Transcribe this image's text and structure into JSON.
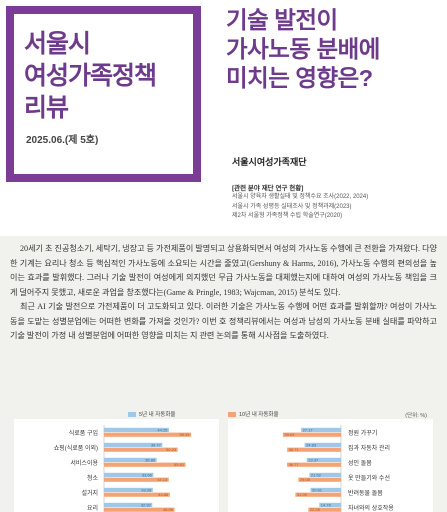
{
  "brand": {
    "title_lines": [
      "서울시",
      "여성가족정책",
      "리뷰"
    ],
    "issue": "2025.06.(제 5호)"
  },
  "headline": {
    "lines": [
      "기술 발전이",
      "가사노동 분배에",
      "미치는 영향은?"
    ]
  },
  "org": "서울시여성가족재단",
  "related": {
    "title": "[관련 분야 재단 연구 현황]",
    "items": [
      "서울시 양육자 생활실태 및 정책수요 조사(2022, 2024)",
      "서울시 가족 성평등 실태조사 및 정책과제(2023)",
      "제2차 서울형 가족정책 수립 학술연구(2020)"
    ]
  },
  "body": {
    "paragraphs": [
      "20세기 초 진공청소기, 세탁기, 냉장고 등 가전제품이 발명되고 상용화되면서 여성의 가사노동 수행에 큰 전환을 가져왔다. 다양한 기계는 요리나 청소 등 핵심적인 가사노동에 소요되는 시간을 줄였고(Gershuny & Harms, 2016), 가사노동 수행의 편의성을 높이는 효과를 발휘했다. 그러나 기술 발전이 여성에게 의지했던 무급 가사노동을 대체했는지에 대하여 여성의 가사노동 책임을 크게 덜어주지 못했고, 새로운 과업을 창조했다는(Game & Pringle, 1983; Wajcman, 2015) 분석도 있다.",
      "최근 AI 기술 발전으로 가전제품이 더 고도화되고 있다. 이러한 기술은 가사노동 수행에 어떤 효과를 발휘할까? 여성이 가사노동을 도맡는 성별분업에는 어떠한 변화를 가져올 것인가? 이번 호 정책리뷰에서는 여성과 남성의 가사노동 분배 실태를 파악하고 기술 발전이 가정 내 성별분업에 어떠한 영향을 미치는 지 관련 논의를 통해 시사점을 도출하였다."
    ]
  },
  "chart_data": {
    "type": "bar",
    "orientation": "horizontal",
    "unit_label": "(단위: %)",
    "legend": [
      "5년 내 자동화율",
      "10년 내 자동화율"
    ],
    "colors": {
      "five_year": "#9fc8e8",
      "ten_year": "#f3a477"
    },
    "panels": [
      {
        "categories": [
          "식료품 구입",
          "쇼핑(식료품 이외)",
          "서비스이용",
          "청소",
          "설거지",
          "요리"
        ],
        "series": [
          {
            "name": "5년 내 자동화율",
            "values": [
              44.25,
              39.77,
              35.86,
              33.66,
              33.28,
              32.92
            ]
          },
          {
            "name": "10년 내 자동화율",
            "values": [
              59.34,
              50.23,
              55.61,
              44.13,
              44.86,
              48.06
            ]
          }
        ]
      },
      {
        "categories": [
          "정원 가꾸기",
          "집과 자동차 관리",
          "성인 돌봄",
          "옷 만들기와 수선",
          "반려동물 돌봄",
          "자녀와의 상호작용"
        ],
        "series": [
          {
            "name": "5년 내 자동화율",
            "values": [
              27.17,
              24.83,
              23.37,
              21.52,
              20.81,
              14.79
            ]
          },
          {
            "name": "10년 내 자동화율",
            "values": [
              39.63,
              36.71,
              36.77,
              29.08,
              31.09,
              22.25
            ]
          }
        ]
      }
    ],
    "xlim": [
      0,
      60
    ]
  }
}
